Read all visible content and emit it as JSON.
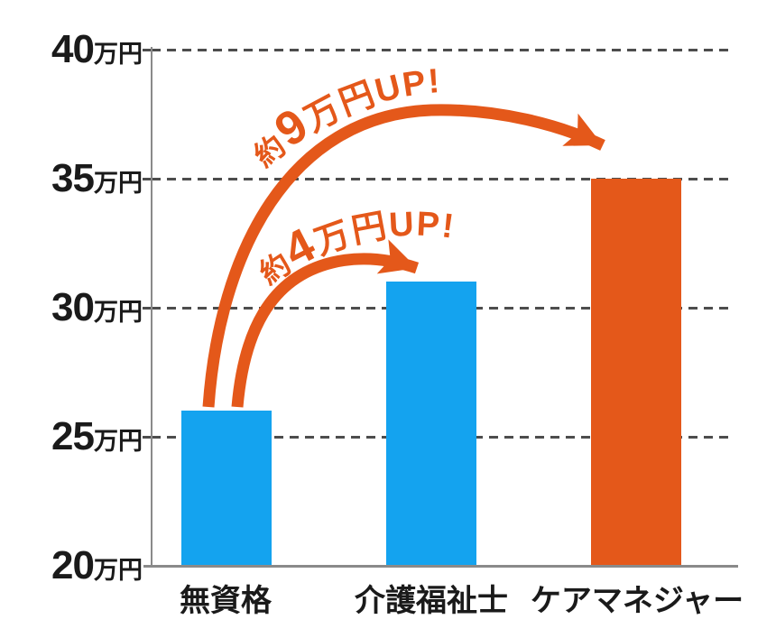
{
  "colors": {
    "bar_blue": "#14a3ef",
    "bar_orange": "#e4581a",
    "arrow_orange": "#e4581a",
    "axis_gray": "#8a8a8a",
    "grid_gray": "#4d4d4d",
    "label_black": "#1a1a1a"
  },
  "yaxis": {
    "ticks": [
      {
        "num": "40",
        "unit": "万円",
        "value": 40
      },
      {
        "num": "35",
        "unit": "万円",
        "value": 35
      },
      {
        "num": "30",
        "unit": "万円",
        "value": 30
      },
      {
        "num": "25",
        "unit": "万円",
        "value": 25
      },
      {
        "num": "20",
        "unit": "万円",
        "value": 20
      }
    ]
  },
  "chart_data": {
    "type": "bar",
    "title": "",
    "categories": [
      "無資格",
      "介護福祉士",
      "ケアマネジャー"
    ],
    "values": [
      26,
      31,
      35
    ],
    "value_unit": "万円",
    "ylim": [
      20,
      40
    ],
    "ytick_step": 5,
    "grid": "horizontal-dashed",
    "legend": "none",
    "bar_colors": [
      "#14a3ef",
      "#14a3ef",
      "#e4581a"
    ],
    "annotations": [
      {
        "text": "約9万円UP!",
        "prefix": "約",
        "big": "9",
        "suffix": "万円UP!",
        "from_bar": "無資格",
        "to_bar": "ケアマネジャー",
        "style": "curved-arrow"
      },
      {
        "text": "約4万円UP!",
        "prefix": "約",
        "big": "4",
        "suffix": "万円UP!",
        "from_bar": "無資格",
        "to_bar": "介護福祉士",
        "style": "curved-arrow"
      }
    ]
  }
}
